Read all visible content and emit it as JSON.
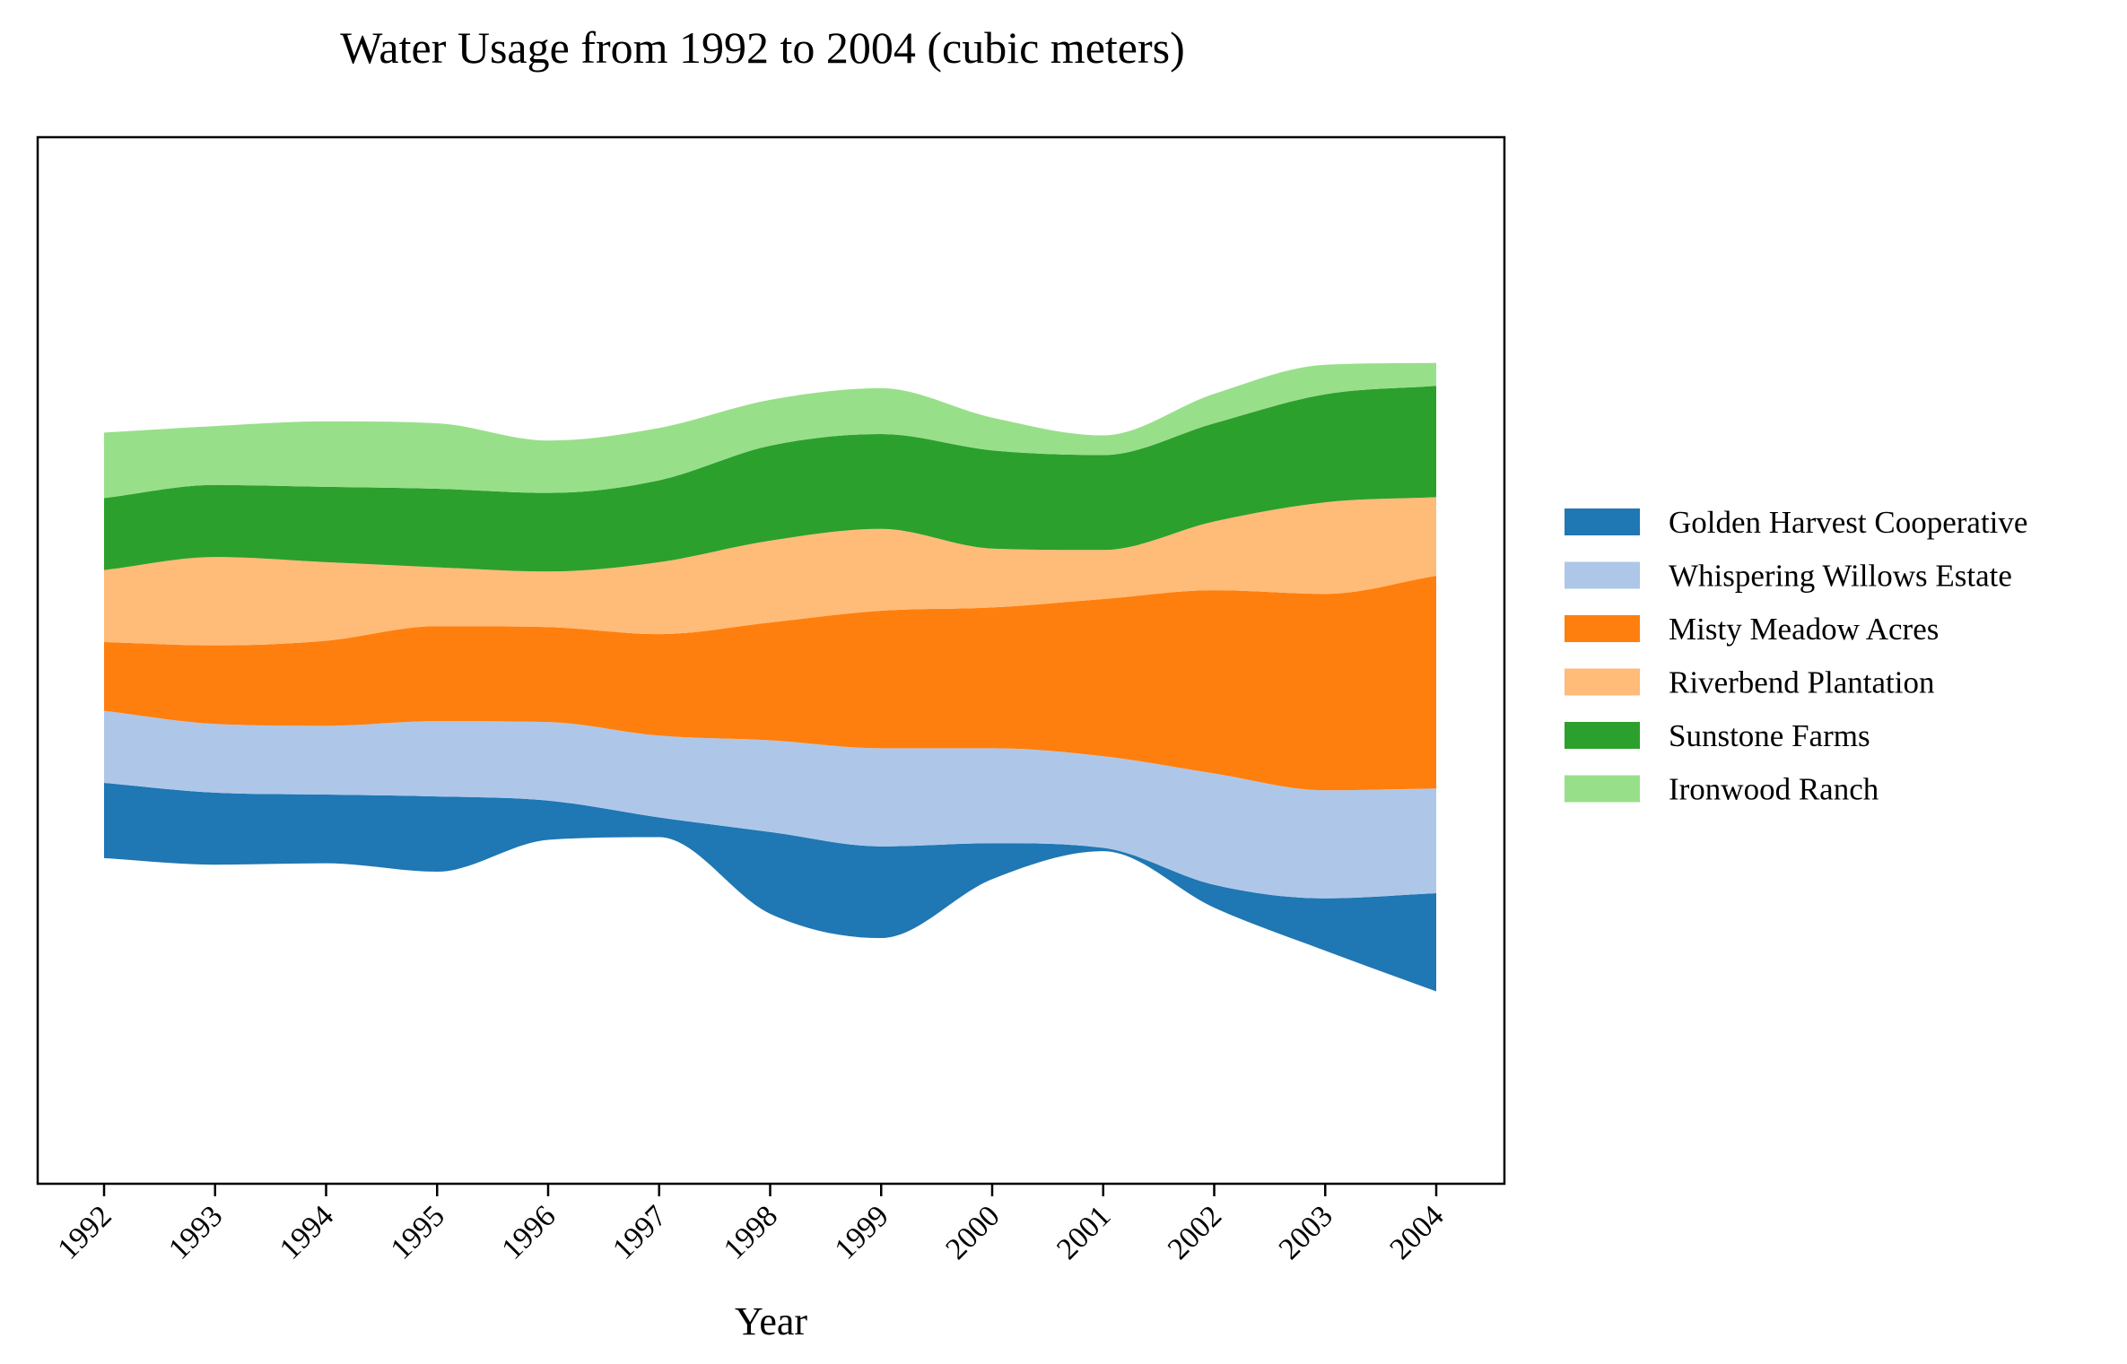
{
  "chart_data": {
    "type": "area",
    "subtype": "streamgraph",
    "title": "Water Usage from 1992 to 2004 (cubic meters)",
    "xlabel": "Year",
    "ylabel": "",
    "categories": [
      "1992",
      "1993",
      "1994",
      "1995",
      "1996",
      "1997",
      "1998",
      "1999",
      "2000",
      "2001",
      "2002",
      "2003",
      "2004"
    ],
    "baseline": "wiggle",
    "grid": false,
    "y_ticks_shown": false,
    "legend_position": "right",
    "series": [
      {
        "name": "Golden Harvest Cooperative",
        "color": "#1f77b4",
        "values": [
          115,
          110,
          105,
          115,
          60,
          30,
          125,
          140,
          55,
          5,
          35,
          80,
          150
        ]
      },
      {
        "name": "Whispering Willows Estate",
        "color": "#aec7e8",
        "values": [
          110,
          105,
          105,
          115,
          120,
          125,
          140,
          150,
          145,
          140,
          170,
          165,
          160
        ]
      },
      {
        "name": "Misty Meadow Acres",
        "color": "#ff7f0e",
        "values": [
          105,
          120,
          130,
          145,
          145,
          155,
          180,
          210,
          215,
          240,
          280,
          300,
          325
        ]
      },
      {
        "name": "Riverbend Plantation",
        "color": "#ffbb78",
        "values": [
          110,
          135,
          120,
          90,
          85,
          110,
          125,
          125,
          90,
          75,
          105,
          140,
          120
        ]
      },
      {
        "name": "Sunstone Farms",
        "color": "#2ca02c",
        "values": [
          110,
          110,
          115,
          120,
          120,
          125,
          145,
          145,
          150,
          145,
          150,
          165,
          170
        ]
      },
      {
        "name": "Ironwood Ranch",
        "color": "#98df8a",
        "values": [
          100,
          90,
          100,
          100,
          80,
          80,
          70,
          70,
          50,
          30,
          45,
          45,
          35
        ]
      }
    ]
  }
}
